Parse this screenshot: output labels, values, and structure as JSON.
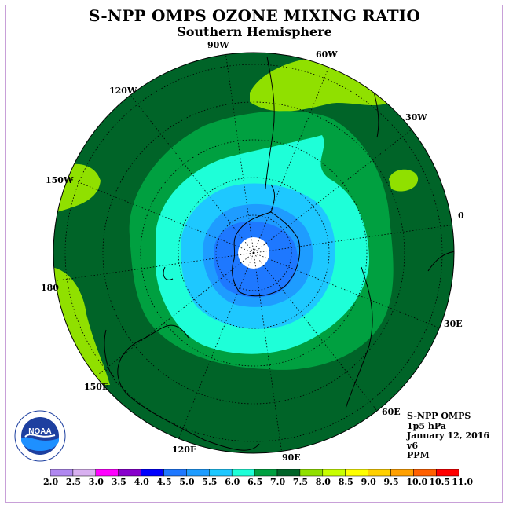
{
  "title": "S-NPP OMPS OZONE MIXING RATIO",
  "subtitle": "Southern Hemisphere",
  "longitude_labels": [
    "90W",
    "60W",
    "120W",
    "30W",
    "150W",
    "0",
    "180",
    "30E",
    "150E",
    "60E",
    "120E",
    "90E"
  ],
  "info": {
    "instrument": "S-NPP OMPS",
    "level": "1p5 hPa",
    "date": "January 12, 2016",
    "version": "v6",
    "units": "PPM"
  },
  "logo_text": "NOAA",
  "colorbar": {
    "labels": [
      "2.0",
      "2.5",
      "3.0",
      "3.5",
      "4.0",
      "4.5",
      "5.0",
      "5.5",
      "6.0",
      "6.5",
      "7.0",
      "7.5",
      "8.0",
      "8.5",
      "9.0",
      "9.5",
      "10.0",
      "10.5",
      "11.0"
    ],
    "colors": [
      "#b088f0",
      "#d8b0f0",
      "#ff00ff",
      "#8800cc",
      "#0000ff",
      "#1e78ff",
      "#1e9cff",
      "#1ec8ff",
      "#1effd8",
      "#00a040",
      "#006428",
      "#90e000",
      "#c8ff00",
      "#ffff00",
      "#ffd000",
      "#ffa000",
      "#ff6000",
      "#ff0000",
      "#8b5030"
    ]
  },
  "colors": {
    "ocean_dark": "#006428",
    "ring_mid": "#00a040",
    "aqua": "#1effd8",
    "sky": "#1ec8ff",
    "blue": "#1e9cff",
    "deep_blue": "#1e78ff",
    "lime": "#90e000"
  }
}
